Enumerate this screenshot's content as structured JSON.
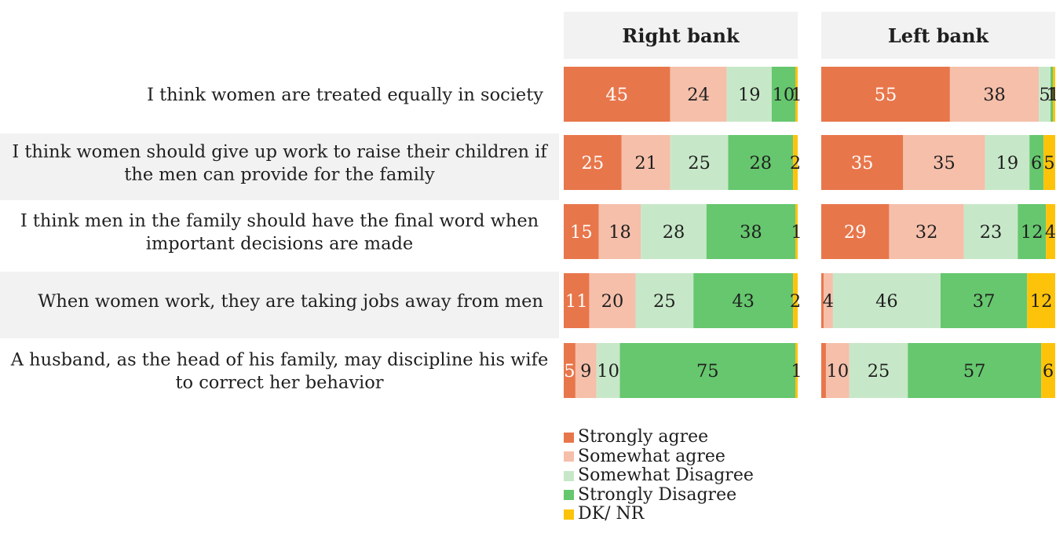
{
  "chart_data": {
    "type": "bar",
    "orientation": "horizontal",
    "stacked": true,
    "categories": [
      "I think women are treated equally in society",
      "I think women should give up work to raise their children if the men can provide for the family",
      "I think men in the family should have the final word when important decisions are made",
      "When women work, they are taking jobs away from men",
      "A husband, as the head of his family, may discipline his wife to correct her behavior"
    ],
    "category_lines": [
      [
        "I think women are treated equally in society"
      ],
      [
        "I think women should give up work to raise their children if",
        "the men can provide for the family"
      ],
      [
        "I think men in the family should have the final word when",
        "important decisions are made"
      ],
      [
        "When women work, they are taking jobs away from men"
      ],
      [
        "A husband, as the head of his family, may discipline his wife",
        "to correct her behavior"
      ]
    ],
    "panels": [
      {
        "title": "Right bank",
        "series": [
          {
            "name": "Strongly agree",
            "values": [
              45,
              25,
              15,
              11,
              5
            ]
          },
          {
            "name": "Somewhat agree",
            "values": [
              24,
              21,
              18,
              20,
              9
            ]
          },
          {
            "name": "Somewhat Disagree",
            "values": [
              19,
              25,
              28,
              25,
              10
            ]
          },
          {
            "name": "Strongly Disagree",
            "values": [
              10,
              28,
              38,
              43,
              75
            ]
          },
          {
            "name": "DK/ NR",
            "values": [
              1,
              2,
              1,
              2,
              1
            ]
          }
        ]
      },
      {
        "title": "Left bank",
        "series": [
          {
            "name": "Strongly agree",
            "values": [
              55,
              35,
              29,
              1,
              2
            ]
          },
          {
            "name": "Somewhat agree",
            "values": [
              38,
              35,
              32,
              4,
              10
            ]
          },
          {
            "name": "Somewhat Disagree",
            "values": [
              5,
              19,
              23,
              46,
              25
            ]
          },
          {
            "name": "Strongly Disagree",
            "values": [
              1,
              6,
              12,
              37,
              57
            ]
          },
          {
            "name": "DK/ NR",
            "values": [
              1,
              5,
              4,
              12,
              6
            ]
          }
        ]
      }
    ],
    "hidden_labels": [
      [
        [],
        [],
        [],
        [],
        []
      ],
      [
        [],
        [],
        [],
        [
          0
        ],
        [
          0
        ]
      ]
    ],
    "xlim": [
      0,
      100
    ],
    "legend_position": "bottom-left",
    "grid": false
  },
  "colors": {
    "series": [
      "#E8764B",
      "#F5BFAA",
      "#C7E8C8",
      "#66C76E",
      "#FDC30A"
    ],
    "panel_header_bg": "#F2F2F2",
    "row_band_bg": "#F2F2F2",
    "text": "#1F1F1F",
    "label_on_dark": "#FFFFFF"
  }
}
